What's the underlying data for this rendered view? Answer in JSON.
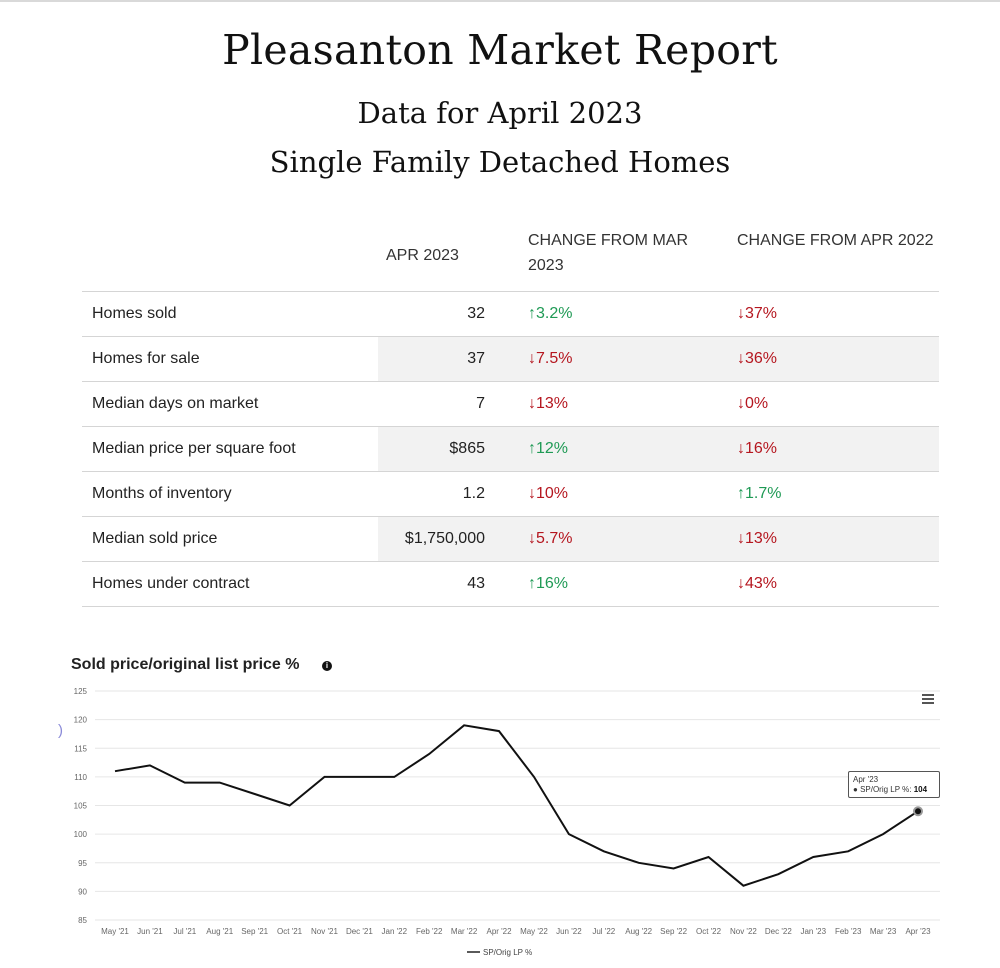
{
  "header": {
    "title": "Pleasanton Market Report",
    "subtitle1": "Data for April 2023",
    "subtitle2": "Single Family Detached Homes"
  },
  "table": {
    "col_headers": [
      "",
      "APR 2023",
      "CHANGE FROM MAR 2023",
      "CHANGE FROM APR 2022"
    ],
    "rows": [
      {
        "label": "Homes sold",
        "value": "32",
        "mom": "3.2%",
        "mom_dir": "up",
        "yoy": "37%",
        "yoy_dir": "down"
      },
      {
        "label": "Homes for sale",
        "value": "37",
        "mom": "7.5%",
        "mom_dir": "down",
        "yoy": "36%",
        "yoy_dir": "down"
      },
      {
        "label": "Median days on market",
        "value": "7",
        "mom": "13%",
        "mom_dir": "down",
        "yoy": "0%",
        "yoy_dir": "down"
      },
      {
        "label": "Median price per square foot",
        "value": "$865",
        "mom": "12%",
        "mom_dir": "up",
        "yoy": "16%",
        "yoy_dir": "down"
      },
      {
        "label": "Months of inventory",
        "value": "1.2",
        "mom": "10%",
        "mom_dir": "down",
        "yoy": "1.7%",
        "yoy_dir": "up"
      },
      {
        "label": "Median sold price",
        "value": "$1,750,000",
        "mom": "5.7%",
        "mom_dir": "down",
        "yoy": "13%",
        "yoy_dir": "down"
      },
      {
        "label": "Homes under contract",
        "value": "43",
        "mom": "16%",
        "mom_dir": "up",
        "yoy": "43%",
        "yoy_dir": "down"
      }
    ]
  },
  "arrows": {
    "up": "↑",
    "down": "↓"
  },
  "colors": {
    "up": "#1f9a55",
    "down": "#b5161f",
    "line": "#111111",
    "grid": "#e6e6e6"
  },
  "icons": {
    "info": "info-icon",
    "menu": "hamburger-menu-icon"
  },
  "chart_data": {
    "type": "line",
    "title": "Sold price/original list price %",
    "categories": [
      "May '21",
      "Jun '21",
      "Jul '21",
      "Aug '21",
      "Sep '21",
      "Oct '21",
      "Nov '21",
      "Dec '21",
      "Jan '22",
      "Feb '22",
      "Mar '22",
      "Apr '22",
      "May '22",
      "Jun '22",
      "Jul '22",
      "Aug '22",
      "Sep '22",
      "Oct '22",
      "Nov '22",
      "Dec '22",
      "Jan '23",
      "Feb '23",
      "Mar '23",
      "Apr '23"
    ],
    "series": [
      {
        "name": "SP/Orig LP %",
        "values": [
          111,
          112,
          109,
          109,
          107,
          105,
          110,
          110,
          110,
          114,
          119,
          118,
          110,
          100,
          97,
          95,
          94,
          96,
          91,
          93,
          96,
          97,
          100,
          104
        ]
      }
    ],
    "ylim": [
      85,
      125
    ],
    "yticks": [
      85,
      90,
      95,
      100,
      105,
      110,
      115,
      120,
      125
    ],
    "grid": true,
    "legend": "bottom-center",
    "tooltip": {
      "label": "Apr '23",
      "series": "SP/Orig LP %:",
      "value": "104"
    }
  }
}
